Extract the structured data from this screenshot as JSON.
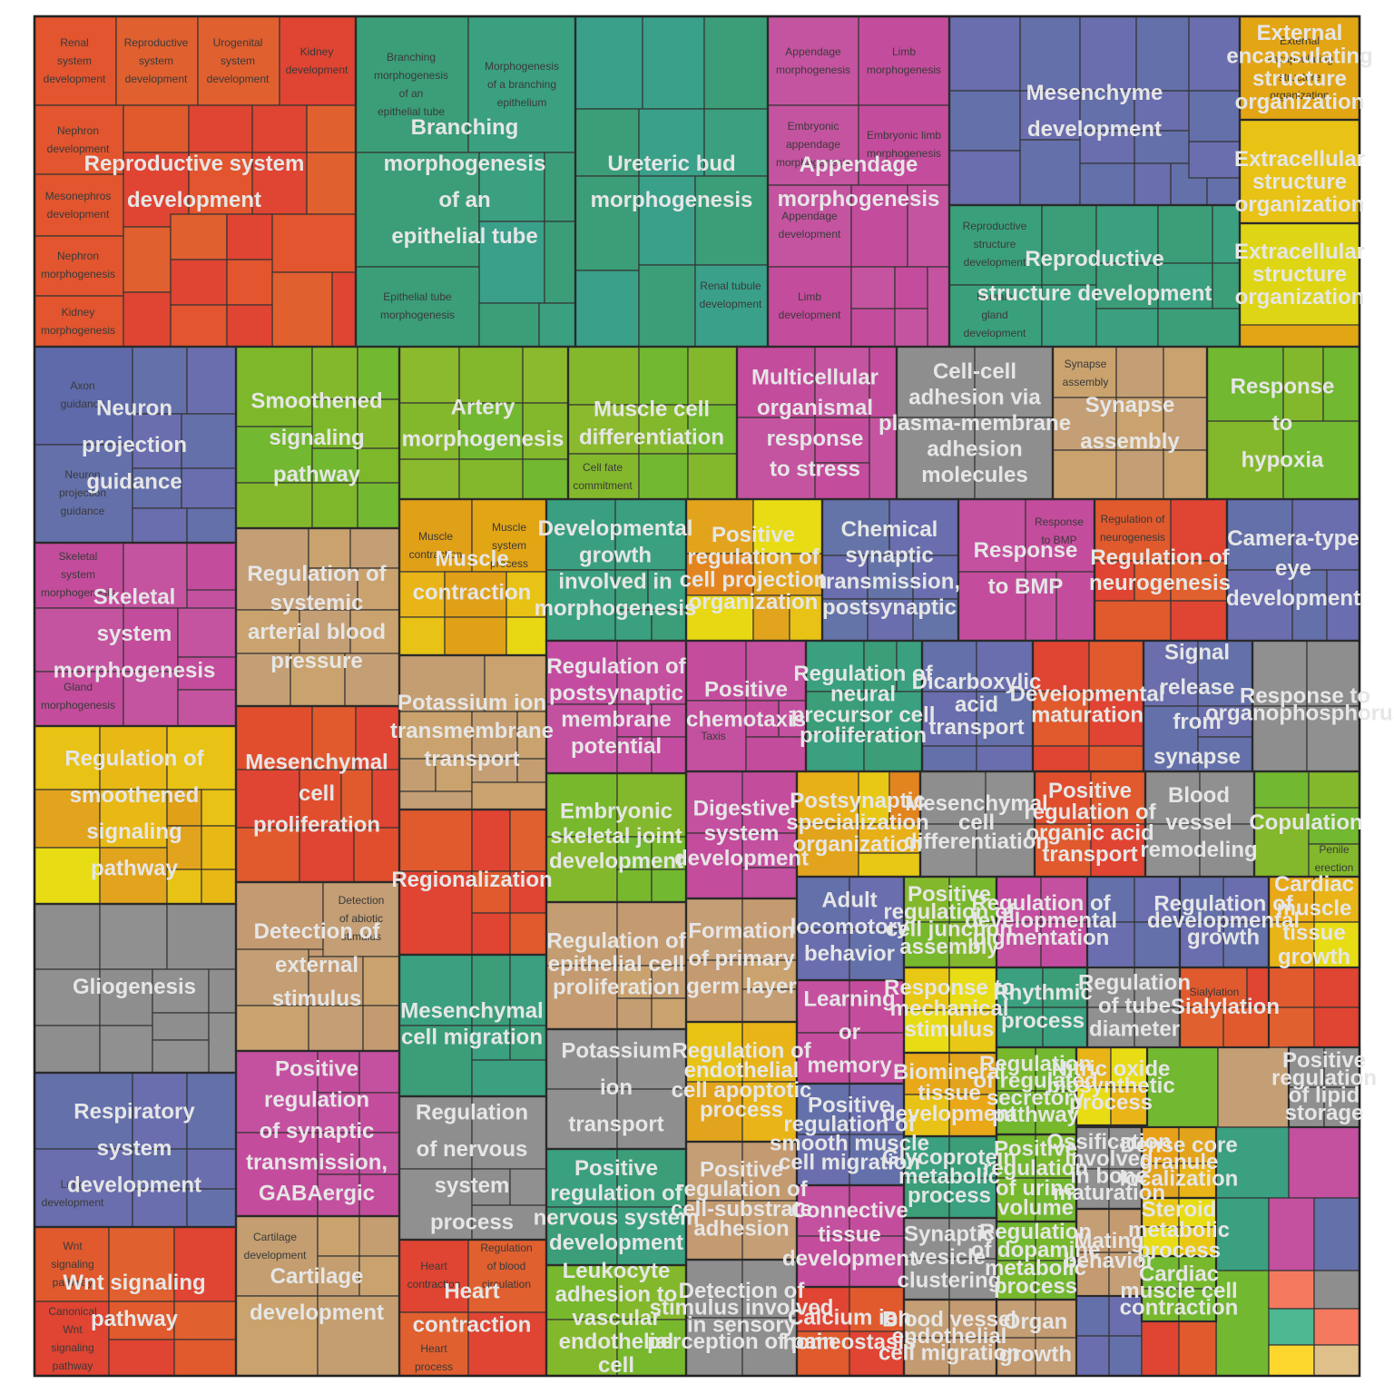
{
  "chart_data": {
    "type": "treemap",
    "title": "",
    "groups": [
      {
        "name": "Reproductive system development",
        "color": "#E2552E",
        "terms": [
          "Renal system development",
          "Reproductive system development",
          "Urogenital system development",
          "Kidney development",
          "Nephron development",
          "Mesonephros development",
          "Nephron morphogenesis",
          "Kidney morphogenesis"
        ]
      },
      {
        "name": "Branching morphogenesis of an epithelial tube",
        "color": "#3B9E78",
        "terms": [
          "Branching morphogenesis of an epithelial tube",
          "Morphogenesis of a branching epithelium",
          "Epithelial tube morphogenesis"
        ]
      },
      {
        "name": "Ureteric bud morphogenesis",
        "color": "#3AA08A",
        "terms": [
          "Renal tubule development"
        ]
      },
      {
        "name": "Appendage morphogenesis",
        "color": "#C454A0",
        "terms": [
          "Appendage morphogenesis",
          "Limb morphogenesis",
          "Embryonic appendage morphogenesis",
          "Embryonic limb morphogenesis",
          "Appendage development",
          "Limb development"
        ]
      },
      {
        "name": "Mesenchyme development",
        "color": "#6A6EAE",
        "terms": []
      },
      {
        "name": "Reproductive structure development",
        "color": "#3AA07C",
        "terms": [
          "Reproductive structure development",
          "Female gland development"
        ]
      },
      {
        "name": "External encapsulating structure organization",
        "color": "#E2A514",
        "terms": [
          "External encapsulating structure organization"
        ]
      },
      {
        "name": "Extracellular structure organization",
        "color": "#E8C214",
        "terms": []
      },
      {
        "name": "Extracellular structure organization",
        "color": "#DED614",
        "terms": []
      },
      {
        "name": "Neuron projection guidance",
        "color": "#5E6AAA",
        "terms": [
          "Axon guidance",
          "Neuron projection guidance"
        ]
      },
      {
        "name": "Smoothened signaling pathway",
        "color": "#7CB82A",
        "terms": []
      },
      {
        "name": "Artery morphogenesis",
        "color": "#8CBA2E",
        "terms": []
      },
      {
        "name": "Muscle cell differentiation",
        "color": "#84B82C",
        "terms": [
          "Cell fate commitment"
        ]
      },
      {
        "name": "Multicellular organismal response to stress",
        "color": "#C44C9C",
        "terms": []
      },
      {
        "name": "Cell-cell adhesion via plasma-membrane adhesion molecules",
        "color": "#8E8E8E",
        "terms": []
      },
      {
        "name": "Synapse assembly",
        "color": "#C9A26E",
        "terms": [
          "Synapse assembly"
        ]
      },
      {
        "name": "Response to hypoxia",
        "color": "#72B830",
        "terms": []
      },
      {
        "name": "Skeletal system morphogenesis",
        "color": "#C450A0",
        "terms": [
          "Skeletal system morphogenesis",
          "Gland morphogenesis"
        ]
      },
      {
        "name": "Regulation of systemic arterial blood pressure",
        "color": "#C49E74",
        "terms": []
      },
      {
        "name": "Muscle contraction",
        "color": "#E0A018",
        "terms": [
          "Muscle contraction",
          "Muscle system process"
        ]
      },
      {
        "name": "Developmental growth involved in morphogenesis",
        "color": "#3A9E80",
        "terms": []
      },
      {
        "name": "Positive regulation of cell projection organization",
        "color": "#E2A41C",
        "terms": []
      },
      {
        "name": "Chemical synaptic transmission, postsynaptic",
        "color": "#6474A8",
        "terms": []
      },
      {
        "name": "Response to BMP",
        "color": "#C450A0",
        "terms": [
          "Response to BMP"
        ]
      },
      {
        "name": "Regulation of neurogenesis",
        "color": "#E05A2E",
        "terms": [
          "Regulation of neurogenesis"
        ]
      },
      {
        "name": "Camera-type eye development",
        "color": "#6470AA",
        "terms": []
      },
      {
        "name": "Regulation of smoothened signaling pathway",
        "color": "#E8B814",
        "terms": []
      },
      {
        "name": "Mesenchymal cell proliferation",
        "color": "#E04E2E",
        "terms": []
      },
      {
        "name": "Potassium ion transmembrane transport",
        "color": "#C49E70",
        "terms": []
      },
      {
        "name": "Regulation of postsynaptic membrane potential",
        "color": "#C44CA0",
        "terms": []
      },
      {
        "name": "Positive chemotaxis",
        "color": "#C44C9C",
        "terms": [
          "Taxis"
        ]
      },
      {
        "name": "Regulation of neural precursor cell proliferation",
        "color": "#3AA080",
        "terms": []
      },
      {
        "name": "Dicarboxylic acid transport",
        "color": "#6470AA",
        "terms": []
      },
      {
        "name": "Developmental maturation",
        "color": "#E04432",
        "terms": []
      },
      {
        "name": "Signal release from synapse",
        "color": "#6A6EAC",
        "terms": []
      },
      {
        "name": "Response to organophosphorus",
        "color": "#909090",
        "terms": []
      },
      {
        "name": "Gliogenesis",
        "color": "#8E8E8E",
        "terms": []
      },
      {
        "name": "Detection of external stimulus",
        "color": "#C49A70",
        "terms": [
          "Detection of abiotic stimulus"
        ]
      },
      {
        "name": "Regionalization",
        "color": "#E05A2E",
        "terms": []
      },
      {
        "name": "Embryonic skeletal joint development",
        "color": "#78B82C",
        "terms": []
      },
      {
        "name": "Digestive system development",
        "color": "#C450A0",
        "terms": []
      },
      {
        "name": "Postsynaptic specialization organization",
        "color": "#E8B018",
        "terms": []
      },
      {
        "name": "Mesenchymal cell differentiation",
        "color": "#8E8E8E",
        "terms": []
      },
      {
        "name": "Positive regulation of organic acid transport",
        "color": "#E04E2E",
        "terms": []
      },
      {
        "name": "Blood vessel remodeling",
        "color": "#8E8E8E",
        "terms": []
      },
      {
        "name": "Copulation",
        "color": "#72B830",
        "terms": [
          "Penile erection"
        ]
      },
      {
        "name": "Regulation of epithelial cell proliferation",
        "color": "#C49E72",
        "terms": []
      },
      {
        "name": "Formation of primary germ layer",
        "color": "#C49E74",
        "terms": []
      },
      {
        "name": "Adult locomotory behavior",
        "color": "#6470AA",
        "terms": []
      },
      {
        "name": "Positive regulation of cell junction assembly",
        "color": "#84B82C",
        "terms": []
      },
      {
        "name": "Regulation of developmental pigmentation",
        "color": "#C44CA0",
        "terms": []
      },
      {
        "name": "Regulation of developmental growth",
        "color": "#6470AA",
        "terms": []
      },
      {
        "name": "Cardiac muscle tissue growth",
        "color": "#E8A818",
        "terms": []
      },
      {
        "name": "Respiratory system development",
        "color": "#6470AA",
        "terms": [
          "Lung development"
        ]
      },
      {
        "name": "Mesenchymal cell migration",
        "color": "#3AA080",
        "terms": []
      },
      {
        "name": "Potassium ion transport",
        "color": "#8E8E8E",
        "terms": []
      },
      {
        "name": "Learning or memory",
        "color": "#C450A0",
        "terms": []
      },
      {
        "name": "Response to mechanical stimulus",
        "color": "#E8C814",
        "terms": []
      },
      {
        "name": "Rhythmic process",
        "color": "#3AA080",
        "terms": []
      },
      {
        "name": "Regulation of tube diameter",
        "color": "#8E8E8E",
        "terms": []
      },
      {
        "name": "Sialylation",
        "color": "#E05A2E",
        "terms": [
          "Sialylation"
        ]
      },
      {
        "name": "Positive regulation of synaptic transmission, GABAergic",
        "color": "#C450A0",
        "terms": []
      },
      {
        "name": "Regulation of endothelial cell apoptotic process",
        "color": "#E8B418",
        "terms": []
      },
      {
        "name": "Positive regulation of smooth muscle cell migration",
        "color": "#6470AA",
        "terms": []
      },
      {
        "name": "Biomineral tissue development",
        "color": "#E8A818",
        "terms": []
      },
      {
        "name": "Regulation of regulated secretory pathway",
        "color": "#78B82C",
        "terms": []
      },
      {
        "name": "Nitric oxide biosynthetic process",
        "color": "#E8B418",
        "terms": []
      },
      {
        "name": "Positive regulation of lipid storage",
        "color": "#8E8E8E",
        "terms": []
      },
      {
        "name": "Regulation of nervous system process",
        "color": "#8E8E8E",
        "terms": []
      },
      {
        "name": "Positive regulation of nervous system development",
        "color": "#3AA080",
        "terms": []
      },
      {
        "name": "Positive regulation of cell-substrate adhesion",
        "color": "#C49E74",
        "terms": []
      },
      {
        "name": "Connective tissue development",
        "color": "#C450A0",
        "terms": []
      },
      {
        "name": "Glycoprotein metabolic process",
        "color": "#3AA080",
        "terms": []
      },
      {
        "name": "Positive regulation of urine volume",
        "color": "#72B830",
        "terms": []
      },
      {
        "name": "Ossification involved in bone maturation",
        "color": "#8E8E8E",
        "terms": []
      },
      {
        "name": "Dense core granule localization",
        "color": "#E8A018",
        "terms": []
      },
      {
        "name": "Wnt signaling pathway",
        "color": "#E05A2E",
        "terms": [
          "Wnt signaling pathway",
          "Canonical Wnt signaling pathway"
        ]
      },
      {
        "name": "Cartilage development",
        "color": "#C49E70",
        "terms": [
          "Cartilage development"
        ]
      },
      {
        "name": "Heart contraction",
        "color": "#E04432",
        "terms": [
          "Heart contraction",
          "Regulation of blood circulation",
          "Heart process"
        ]
      },
      {
        "name": "Leukocyte adhesion to vascular endothelial cell",
        "color": "#78B82C",
        "terms": []
      },
      {
        "name": "Detection of stimulus involved in sensory perception of pain",
        "color": "#8E8E8E",
        "terms": []
      },
      {
        "name": "Calcium ion homeostasis",
        "color": "#E04432",
        "terms": []
      },
      {
        "name": "Synaptic vesicle clustering",
        "color": "#8E8E8E",
        "terms": []
      },
      {
        "name": "Blood vessel endothelial cell migration",
        "color": "#C49E74",
        "terms": []
      },
      {
        "name": "Organ growth",
        "color": "#C49E74",
        "terms": []
      },
      {
        "name": "Regulation of dopamine metabolic process",
        "color": "#72B830",
        "terms": []
      },
      {
        "name": "Mating behavior",
        "color": "#C49E74",
        "terms": []
      },
      {
        "name": "Steroid metabolic process",
        "color": "#E8C814",
        "terms": []
      },
      {
        "name": "Cardiac muscle cell contraction",
        "color": "#72B830",
        "terms": []
      }
    ]
  }
}
